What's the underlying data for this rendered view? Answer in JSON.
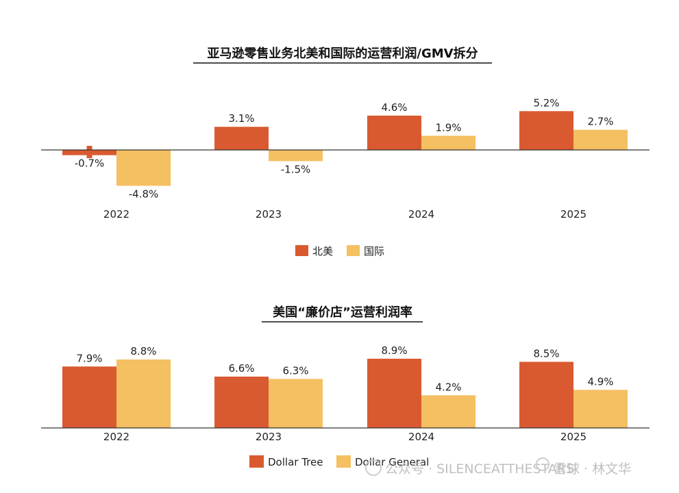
{
  "chart_data": [
    {
      "type": "bar",
      "title": "亚马逊零售业务北美和国际的运营利润/GMV拆分",
      "categories": [
        "2022",
        "2023",
        "2024",
        "2025"
      ],
      "series": [
        {
          "name": "北美",
          "color": "#d95a30",
          "values": [
            -0.7,
            3.1,
            4.6,
            5.2
          ],
          "labels": [
            "-0.7%",
            "3.1%",
            "4.6%",
            "5.2%"
          ]
        },
        {
          "name": "国际",
          "color": "#f4c062",
          "values": [
            -4.8,
            -1.5,
            1.9,
            2.7
          ],
          "labels": [
            "-4.8%",
            "-1.5%",
            "1.9%",
            "2.7%"
          ]
        }
      ],
      "ylim": [
        -5.2,
        6.0
      ],
      "grid": false,
      "legend": "bottom-center"
    },
    {
      "type": "bar",
      "title": "美国“廉价店”运营利润率",
      "categories": [
        "2022",
        "2023",
        "2024",
        "2025"
      ],
      "series": [
        {
          "name": "Dollar Tree",
          "color": "#d95a30",
          "values": [
            7.9,
            6.6,
            8.9,
            8.5
          ],
          "labels": [
            "7.9%",
            "6.6%",
            "8.9%",
            "8.5%"
          ]
        },
        {
          "name": "Dollar General",
          "color": "#f4c062",
          "values": [
            8.8,
            6.3,
            4.2,
            4.9
          ],
          "labels": [
            "8.8%",
            "6.3%",
            "4.2%",
            "4.9%"
          ]
        }
      ],
      "ylim": [
        0,
        10
      ],
      "grid": false,
      "legend": "bottom-center"
    }
  ],
  "watermark": {
    "left": "公众号 · SILENCEATTHESTARS",
    "right": "雪球 · 林文华"
  }
}
